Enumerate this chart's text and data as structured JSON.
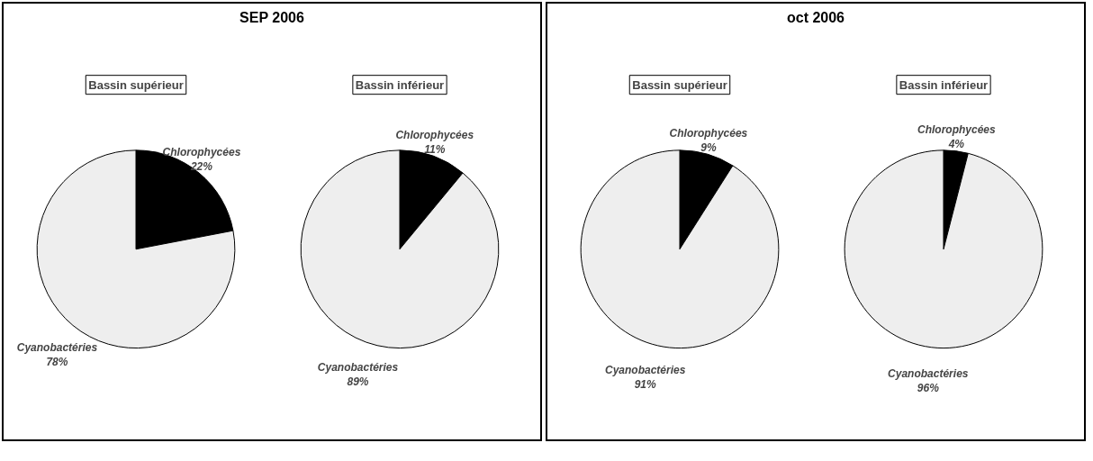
{
  "chart_data": [
    {
      "type": "pie",
      "title": "SEP 2006",
      "subtitle": "Bassin supérieur",
      "categories": [
        "Chlorophycées",
        "Cyanobactéries"
      ],
      "values": [
        22,
        78
      ],
      "value_labels": [
        "22%",
        "78%"
      ],
      "colors": [
        "#000000",
        "#eeeeee"
      ]
    },
    {
      "type": "pie",
      "subtitle": "Bassin inférieur",
      "categories": [
        "Chlorophycées",
        "Cyanobactéries"
      ],
      "values": [
        11,
        89
      ],
      "value_labels": [
        "11%",
        "89%"
      ],
      "colors": [
        "#000000",
        "#eeeeee"
      ]
    },
    {
      "type": "pie",
      "title": "oct 2006",
      "subtitle": "Bassin supérieur",
      "categories": [
        "Chlorophycées",
        "Cyanobactéries"
      ],
      "values": [
        9,
        91
      ],
      "value_labels": [
        "9%",
        "91%"
      ],
      "colors": [
        "#000000",
        "#eeeeee"
      ]
    },
    {
      "type": "pie",
      "subtitle": "Bassin inférieur",
      "categories": [
        "Chlorophycées",
        "Cyanobactéries"
      ],
      "values": [
        4,
        96
      ],
      "value_labels": [
        "4%",
        "96%"
      ],
      "colors": [
        "#000000",
        "#eeeeee"
      ]
    }
  ]
}
